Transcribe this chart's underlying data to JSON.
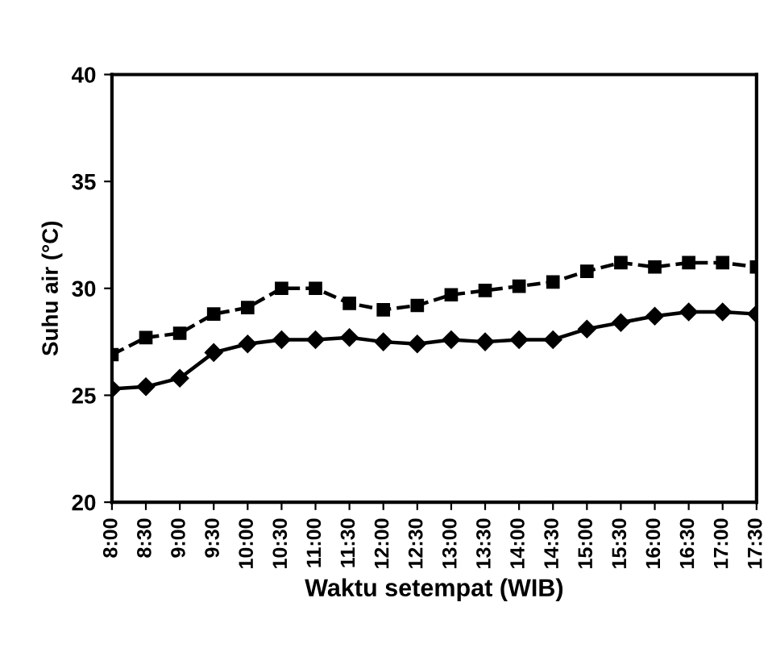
{
  "chart_data": {
    "type": "line",
    "xlabel": "Waktu setempat (WIB)",
    "ylabel": "Suhu air (°C)",
    "categories": [
      "8:00",
      "8:30",
      "9:00",
      "9:30",
      "10:00",
      "10:30",
      "11:00",
      "11:30",
      "12:00",
      "12:30",
      "13:00",
      "13:30",
      "14:00",
      "14:30",
      "15:00",
      "15:30",
      "16:00",
      "16:30",
      "17:00",
      "17:30"
    ],
    "series": [
      {
        "color": "#000000",
        "marker": "square",
        "line_style": "dashed",
        "values": [
          26.9,
          27.7,
          27.9,
          28.8,
          29.1,
          30.0,
          30.0,
          29.3,
          29.0,
          29.2,
          29.7,
          29.9,
          30.1,
          30.3,
          30.8,
          31.2,
          31.0,
          31.2,
          31.2,
          31.0
        ]
      },
      {
        "color": "#000000",
        "marker": "diamond",
        "line_style": "solid",
        "values": [
          25.3,
          25.4,
          25.8,
          27.0,
          27.4,
          27.6,
          27.6,
          27.7,
          27.5,
          27.4,
          27.6,
          27.5,
          27.6,
          27.6,
          28.1,
          28.4,
          28.7,
          28.9,
          28.9,
          28.8
        ]
      }
    ],
    "ylim": [
      20,
      40
    ],
    "yticks": [
      20,
      25,
      30,
      35,
      40
    ],
    "grid": false
  }
}
